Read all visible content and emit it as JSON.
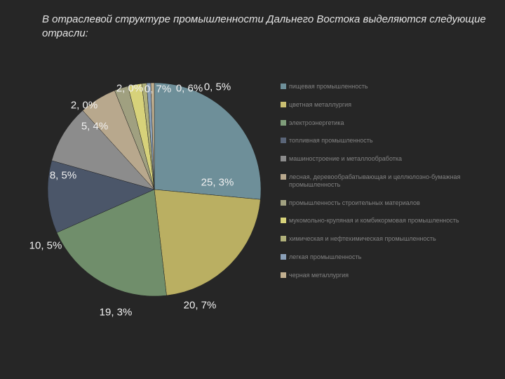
{
  "title": "В отраслевой структуре промышленности Дальнего Востока выделяются следующие отрасли:",
  "chart": {
    "type": "pie",
    "background_color": "#262626",
    "title_fontsize": 15,
    "title_fontstyle": "italic",
    "label_fontsize": 15,
    "label_color": "#f0f0f0",
    "legend_fontsize": 9,
    "legend_color": "#828282",
    "start_angle": -90,
    "slices": [
      {
        "label": "пищевая промышленность",
        "value": 25.3,
        "color": "#6e8f99",
        "display": "25, 3%"
      },
      {
        "label": "цветная металлургия",
        "value": 20.7,
        "color": "#c9be71",
        "display": "20, 7%"
      },
      {
        "label": "электроэнергетика",
        "value": 19.3,
        "color": "#7f9d7a",
        "display": "19, 3%"
      },
      {
        "label": "топливная промышленность",
        "value": 10.5,
        "color": "#5a6578",
        "display": "10, 5%"
      },
      {
        "label": "машиностроение и металлообработка",
        "value": 8.5,
        "color": "#8c8c8c",
        "display": "8, 5%"
      },
      {
        "label": "лесная, деревообрабатывающая и целлюлозно-бумажная промышленность",
        "value": 5.4,
        "color": "#b8a88d",
        "display": "5, 4%"
      },
      {
        "label": "промышленность строительных материалов",
        "value": 2.0,
        "color": "#a0a080",
        "display": "2, 0%"
      },
      {
        "label": "мукомольно-крупяная и комбикормовая промышленность",
        "value": 2.0,
        "color": "#d7d27a",
        "display": "2, 0%"
      },
      {
        "label": "химическая и нефтехимическая промышленность",
        "value": 0.7,
        "color": "#b0b07a",
        "display": "0, 7%"
      },
      {
        "label": "легкая промышленность",
        "value": 0.6,
        "color": "#8aa0b8",
        "display": "0, 6%"
      },
      {
        "label": "черная металлургия",
        "value": 0.5,
        "color": "#c2b090",
        "display": "0, 5%"
      }
    ]
  }
}
